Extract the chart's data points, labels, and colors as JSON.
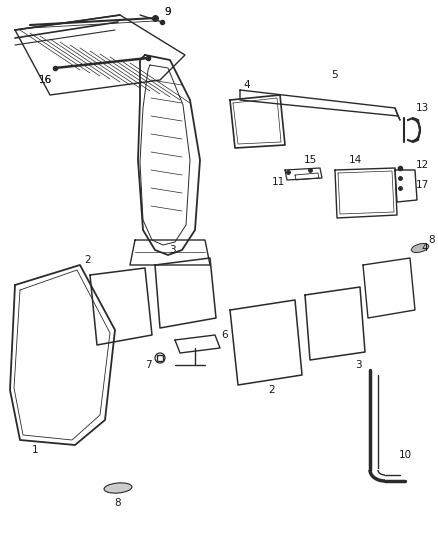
{
  "background": "#ffffff",
  "fig_width": 4.38,
  "fig_height": 5.33,
  "dpi": 100,
  "line_color": "#2a2a2a",
  "line_width": 0.9
}
